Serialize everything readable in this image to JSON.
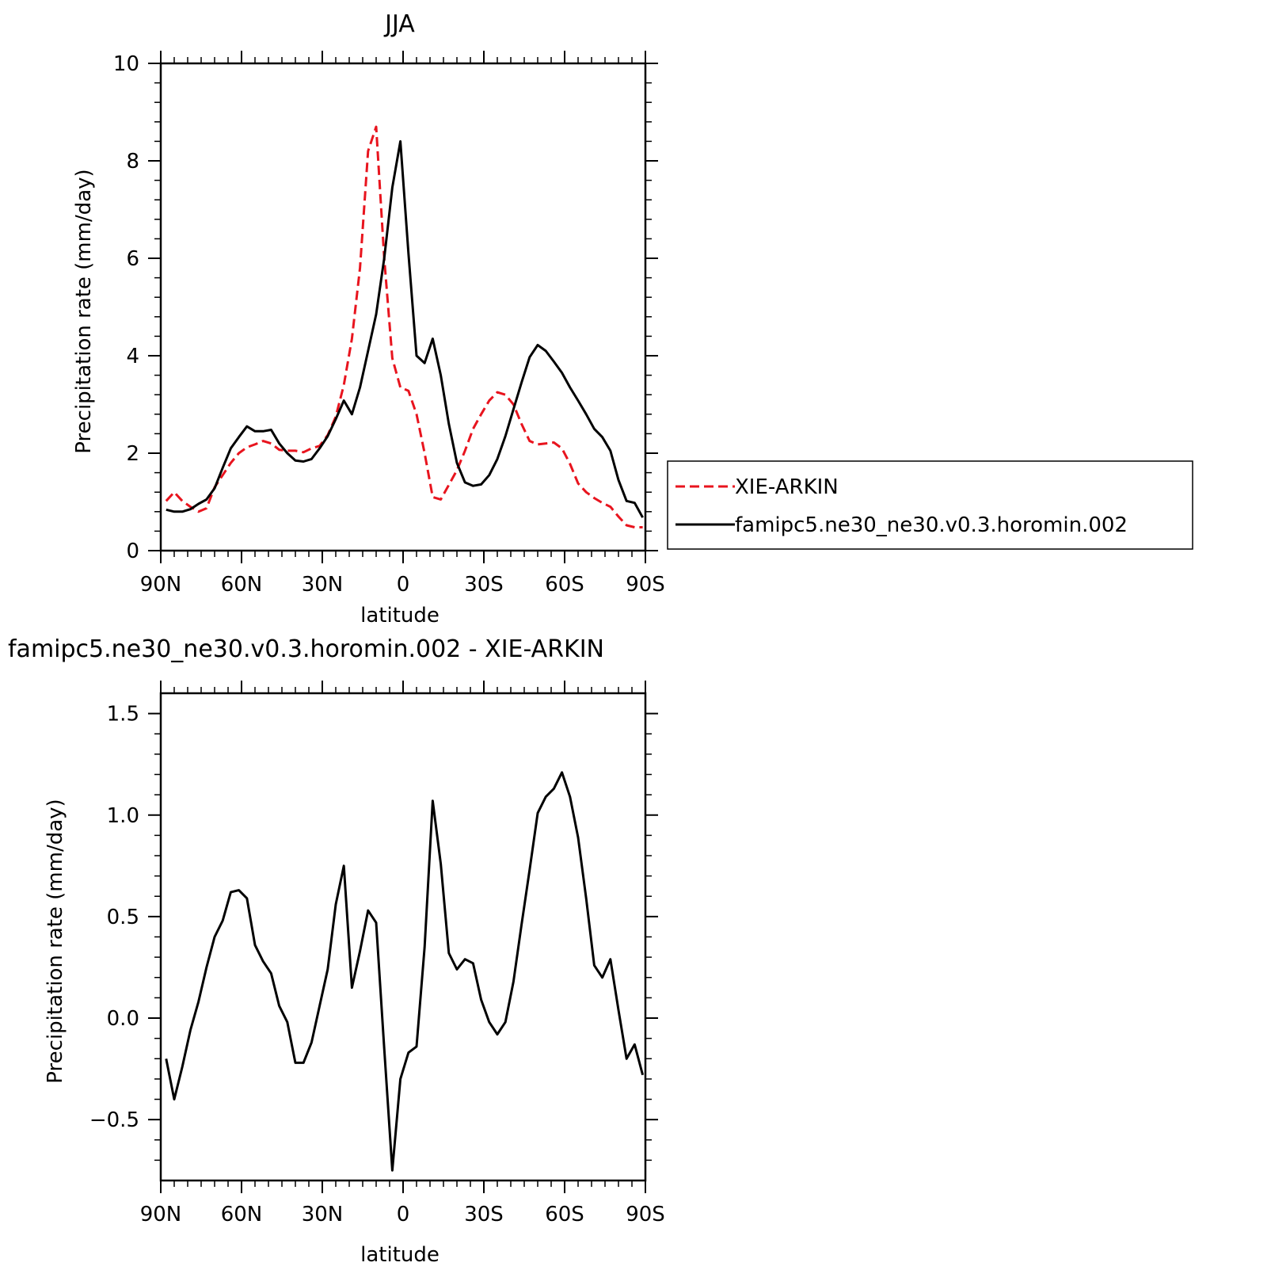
{
  "chart_data": [
    {
      "type": "line",
      "title": "JJA",
      "xlabel": "latitude",
      "ylabel": "Precipitation rate (mm/day)",
      "xlim": [
        90,
        -90
      ],
      "ylim": [
        0,
        10
      ],
      "x_ticks": [
        {
          "value": 90,
          "label": "90N"
        },
        {
          "value": 60,
          "label": "60N"
        },
        {
          "value": 30,
          "label": "30N"
        },
        {
          "value": 0,
          "label": "0"
        },
        {
          "value": -30,
          "label": "30S"
        },
        {
          "value": -60,
          "label": "60S"
        },
        {
          "value": -90,
          "label": "90S"
        }
      ],
      "y_ticks": [
        {
          "value": 0,
          "label": "0"
        },
        {
          "value": 2,
          "label": "2"
        },
        {
          "value": 4,
          "label": "4"
        },
        {
          "value": 6,
          "label": "6"
        },
        {
          "value": 8,
          "label": "8"
        },
        {
          "value": 10,
          "label": "10"
        }
      ],
      "legend_placement": "right",
      "series": [
        {
          "name": "XIE-ARKIN",
          "color": "#e8141e",
          "dash": "dashed",
          "x": [
            88,
            85,
            82,
            79,
            76,
            73,
            70,
            67,
            64,
            61,
            58,
            55,
            52,
            49,
            46,
            43,
            40,
            37,
            34,
            31,
            28,
            25,
            22,
            19,
            16,
            13,
            10,
            7,
            4,
            1,
            -2,
            -5,
            -8,
            -11,
            -14,
            -17,
            -20,
            -23,
            -26,
            -29,
            -32,
            -35,
            -38,
            -41,
            -44,
            -47,
            -50,
            -53,
            -56,
            -59,
            -62,
            -65,
            -68,
            -71,
            -74,
            -77,
            -80,
            -83,
            -86,
            -89
          ],
          "y": [
            1.02,
            1.2,
            1.02,
            0.9,
            0.8,
            0.87,
            1.3,
            1.55,
            1.8,
            2.0,
            2.12,
            2.18,
            2.25,
            2.2,
            2.07,
            2.05,
            2.05,
            2.02,
            2.1,
            2.15,
            2.37,
            2.75,
            3.4,
            4.35,
            5.8,
            8.2,
            8.7,
            6.0,
            3.95,
            3.35,
            3.28,
            2.8,
            2.0,
            1.1,
            1.05,
            1.35,
            1.65,
            2.05,
            2.5,
            2.8,
            3.08,
            3.25,
            3.2,
            3.0,
            2.6,
            2.25,
            2.18,
            2.2,
            2.22,
            2.1,
            1.78,
            1.38,
            1.2,
            1.08,
            0.98,
            0.9,
            0.7,
            0.52,
            0.48,
            0.48
          ]
        },
        {
          "name": "famipc5.ne30_ne30.v0.3.horomin.002",
          "color": "#000000",
          "dash": "solid",
          "x": [
            88,
            85,
            82,
            79,
            76,
            73,
            70,
            67,
            64,
            61,
            58,
            55,
            52,
            49,
            46,
            43,
            40,
            37,
            34,
            31,
            28,
            25,
            22,
            19,
            16,
            13,
            10,
            7,
            4,
            1,
            -2,
            -5,
            -8,
            -11,
            -14,
            -17,
            -20,
            -23,
            -26,
            -29,
            -32,
            -35,
            -38,
            -41,
            -44,
            -47,
            -50,
            -53,
            -56,
            -59,
            -62,
            -65,
            -68,
            -71,
            -74,
            -77,
            -80,
            -83,
            -86,
            -89
          ],
          "y": [
            0.84,
            0.8,
            0.8,
            0.85,
            0.96,
            1.05,
            1.28,
            1.7,
            2.1,
            2.33,
            2.55,
            2.45,
            2.45,
            2.48,
            2.2,
            2.0,
            1.85,
            1.83,
            1.88,
            2.1,
            2.35,
            2.7,
            3.08,
            2.8,
            3.35,
            4.1,
            4.85,
            6.0,
            7.45,
            8.4,
            6.1,
            4.0,
            3.85,
            4.35,
            3.6,
            2.6,
            1.8,
            1.4,
            1.33,
            1.36,
            1.55,
            1.88,
            2.35,
            2.9,
            3.45,
            3.97,
            4.22,
            4.1,
            3.88,
            3.65,
            3.35,
            3.08,
            2.8,
            2.5,
            2.33,
            2.05,
            1.45,
            1.02,
            0.98,
            0.68
          ]
        }
      ]
    },
    {
      "type": "line",
      "title": "famipc5.ne30_ne30.v0.3.horomin.002 - XIE-ARKIN",
      "xlabel": "latitude",
      "ylabel": "Precipitation rate (mm/day)",
      "xlim": [
        90,
        -90
      ],
      "ylim": [
        -0.8,
        1.6
      ],
      "x_ticks": [
        {
          "value": 90,
          "label": "90N"
        },
        {
          "value": 60,
          "label": "60N"
        },
        {
          "value": 30,
          "label": "30N"
        },
        {
          "value": 0,
          "label": "0"
        },
        {
          "value": -30,
          "label": "30S"
        },
        {
          "value": -60,
          "label": "60S"
        },
        {
          "value": -90,
          "label": "90S"
        }
      ],
      "y_ticks": [
        {
          "value": -0.5,
          "label": "−0.5"
        },
        {
          "value": 0.0,
          "label": "0.0"
        },
        {
          "value": 0.5,
          "label": "0.5"
        },
        {
          "value": 1.0,
          "label": "1.0"
        },
        {
          "value": 1.5,
          "label": "1.5"
        }
      ],
      "series": [
        {
          "color": "#000000",
          "dash": "solid",
          "x": [
            88,
            85,
            82,
            79,
            76,
            73,
            70,
            67,
            64,
            61,
            58,
            55,
            52,
            49,
            46,
            43,
            40,
            37,
            34,
            31,
            28,
            25,
            22,
            19,
            16,
            13,
            10,
            7,
            4,
            1,
            -2,
            -5,
            -8,
            -11,
            -14,
            -17,
            -20,
            -23,
            -26,
            -29,
            -32,
            -35,
            -38,
            -41,
            -44,
            -47,
            -50,
            -53,
            -56,
            -59,
            -62,
            -65,
            -68,
            -71,
            -74,
            -77,
            -80,
            -83,
            -86,
            -89
          ],
          "y": [
            -0.2,
            -0.4,
            -0.24,
            -0.06,
            0.08,
            0.25,
            0.4,
            0.48,
            0.62,
            0.63,
            0.59,
            0.36,
            0.28,
            0.22,
            0.06,
            -0.02,
            -0.22,
            -0.22,
            -0.12,
            0.06,
            0.24,
            0.56,
            0.75,
            0.15,
            0.33,
            0.53,
            0.47,
            -0.15,
            -0.75,
            -0.3,
            -0.17,
            -0.14,
            0.35,
            1.07,
            0.76,
            0.32,
            0.24,
            0.29,
            0.27,
            0.09,
            -0.02,
            -0.08,
            -0.02,
            0.18,
            0.46,
            0.73,
            1.01,
            1.09,
            1.13,
            1.21,
            1.09,
            0.89,
            0.59,
            0.26,
            0.2,
            0.29,
            0.04,
            -0.2,
            -0.13,
            -0.28
          ]
        }
      ]
    }
  ]
}
